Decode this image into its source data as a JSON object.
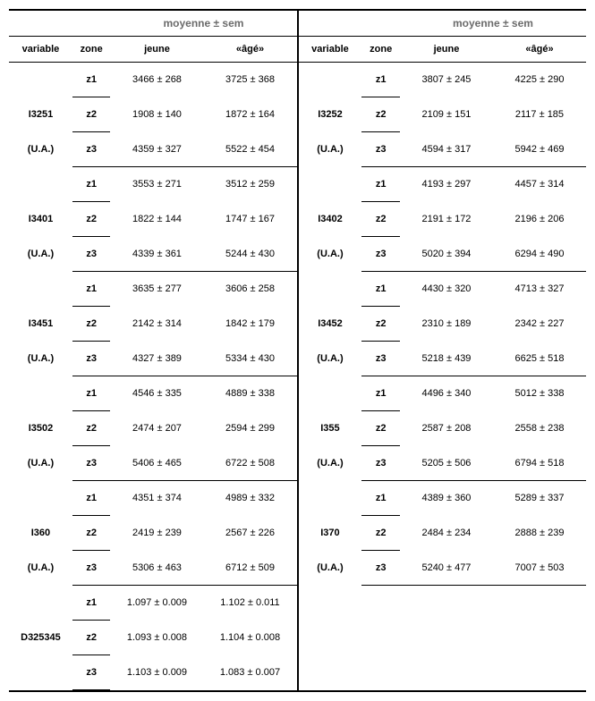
{
  "header": {
    "super": "moyenne ± sem",
    "cols": {
      "variable": "variable",
      "zone": "zone",
      "jeune": "jeune",
      "age": "«âgé»"
    }
  },
  "left": [
    {
      "variable": "I3251",
      "unit": "(U.A.)",
      "rows": [
        {
          "zone": "z1",
          "jeune": "3466 ± 268",
          "age": "3725 ± 368"
        },
        {
          "zone": "z2",
          "jeune": "1908 ± 140",
          "age": "1872 ± 164"
        },
        {
          "zone": "z3",
          "jeune": "4359 ± 327",
          "age": "5522 ± 454"
        }
      ]
    },
    {
      "variable": "I3401",
      "unit": "(U.A.)",
      "rows": [
        {
          "zone": "z1",
          "jeune": "3553 ± 271",
          "age": "3512 ± 259"
        },
        {
          "zone": "z2",
          "jeune": "1822 ± 144",
          "age": "1747 ± 167"
        },
        {
          "zone": "z3",
          "jeune": "4339 ± 361",
          "age": "5244 ± 430"
        }
      ]
    },
    {
      "variable": "I3451",
      "unit": "(U.A.)",
      "rows": [
        {
          "zone": "z1",
          "jeune": "3635 ± 277",
          "age": "3606 ± 258"
        },
        {
          "zone": "z2",
          "jeune": "2142 ± 314",
          "age": "1842 ± 179"
        },
        {
          "zone": "z3",
          "jeune": "4327 ± 389",
          "age": "5334 ± 430"
        }
      ]
    },
    {
      "variable": "I3502",
      "unit": "(U.A.)",
      "rows": [
        {
          "zone": "z1",
          "jeune": "4546 ± 335",
          "age": "4889 ± 338"
        },
        {
          "zone": "z2",
          "jeune": "2474 ± 207",
          "age": "2594 ± 299"
        },
        {
          "zone": "z3",
          "jeune": "5406 ± 465",
          "age": "6722 ± 508"
        }
      ]
    },
    {
      "variable": "I360",
      "unit": "(U.A.)",
      "rows": [
        {
          "zone": "z1",
          "jeune": "4351 ± 374",
          "age": "4989 ± 332"
        },
        {
          "zone": "z2",
          "jeune": "2419 ± 239",
          "age": "2567 ± 226"
        },
        {
          "zone": "z3",
          "jeune": "5306 ± 463",
          "age": "6712 ± 509"
        }
      ]
    },
    {
      "variable": "D325345",
      "unit": "",
      "rows": [
        {
          "zone": "z1",
          "jeune": "1.097 ± 0.009",
          "age": "1.102 ± 0.011"
        },
        {
          "zone": "z2",
          "jeune": "1.093 ± 0.008",
          "age": "1.104 ± 0.008"
        },
        {
          "zone": "z3",
          "jeune": "1.103 ± 0.009",
          "age": "1.083 ± 0.007"
        }
      ]
    }
  ],
  "right": [
    {
      "variable": "I3252",
      "unit": "(U.A.)",
      "rows": [
        {
          "zone": "z1",
          "jeune": "3807 ± 245",
          "age": "4225 ± 290"
        },
        {
          "zone": "z2",
          "jeune": "2109 ± 151",
          "age": "2117 ± 185"
        },
        {
          "zone": "z3",
          "jeune": "4594 ± 317",
          "age": "5942 ± 469"
        }
      ]
    },
    {
      "variable": "I3402",
      "unit": "(U.A.)",
      "rows": [
        {
          "zone": "z1",
          "jeune": "4193 ± 297",
          "age": "4457 ± 314"
        },
        {
          "zone": "z2",
          "jeune": "2191 ± 172",
          "age": "2196 ± 206"
        },
        {
          "zone": "z3",
          "jeune": "5020 ± 394",
          "age": "6294 ± 490"
        }
      ]
    },
    {
      "variable": "I3452",
      "unit": "(U.A.)",
      "rows": [
        {
          "zone": "z1",
          "jeune": "4430 ± 320",
          "age": "4713 ± 327"
        },
        {
          "zone": "z2",
          "jeune": "2310 ± 189",
          "age": "2342 ± 227"
        },
        {
          "zone": "z3",
          "jeune": "5218 ± 439",
          "age": "6625 ± 518"
        }
      ]
    },
    {
      "variable": "I355",
      "unit": "(U.A.)",
      "rows": [
        {
          "zone": "z1",
          "jeune": "4496 ± 340",
          "age": "5012 ± 338"
        },
        {
          "zone": "z2",
          "jeune": "2587 ± 208",
          "age": "2558 ± 238"
        },
        {
          "zone": "z3",
          "jeune": "5205 ± 506",
          "age": "6794 ± 518"
        }
      ]
    },
    {
      "variable": "I370",
      "unit": "(U.A.)",
      "rows": [
        {
          "zone": "z1",
          "jeune": "4389 ± 360",
          "age": "5289 ± 337"
        },
        {
          "zone": "z2",
          "jeune": "2484 ± 234",
          "age": "2888 ± 239"
        },
        {
          "zone": "z3",
          "jeune": "5240 ± 477",
          "age": "7007 ± 503"
        }
      ]
    }
  ]
}
